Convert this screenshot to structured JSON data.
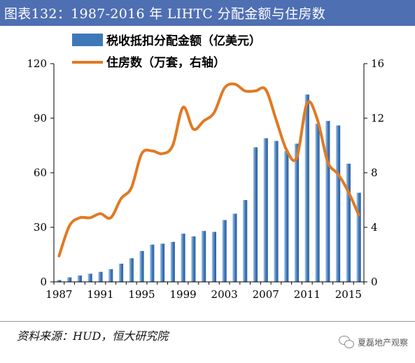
{
  "header": {
    "title": "图表132：1987-2016 年 LIHTC 分配金额与住房数"
  },
  "source": "资料来源：HUD，恒大研究院",
  "watermark": "夏磊地产观察",
  "colors": {
    "bar": "#3f78b8",
    "bar_light": "#a9c8ea",
    "line": "#e07a22",
    "title_bg": "#4f6fb3"
  },
  "chart_data": {
    "type": "bar+line",
    "x_tick_labels": [
      "1987",
      "1991",
      "1995",
      "1999",
      "2003",
      "2007",
      "2011",
      "2015"
    ],
    "y_left": {
      "range": [
        0,
        120
      ],
      "ticks": [
        "0",
        "30",
        "60",
        "90",
        "120"
      ]
    },
    "y_right": {
      "range": [
        0,
        16
      ],
      "ticks": [
        "0",
        "4",
        "8",
        "12",
        "16"
      ]
    },
    "legend": [
      "税收抵扣分配金额（亿美元）",
      "住房数（万套，右轴）"
    ],
    "years": [
      1987,
      1988,
      1989,
      1990,
      1991,
      1992,
      1993,
      1994,
      1995,
      1996,
      1997,
      1998,
      1999,
      2000,
      2001,
      2002,
      2003,
      2004,
      2005,
      2006,
      2007,
      2008,
      2009,
      2010,
      2011,
      2012,
      2013,
      2014,
      2015,
      2016
    ],
    "series": [
      {
        "name": "税收抵扣分配金额（亿美元）",
        "type": "bar",
        "axis": "left",
        "values": [
          1,
          2.5,
          3.5,
          4.5,
          5.5,
          7,
          10,
          13,
          17,
          20.5,
          21,
          22,
          26.5,
          25,
          28,
          27.5,
          34,
          37.5,
          45,
          74,
          79,
          77.5,
          72,
          76,
          103,
          87,
          88.5,
          86,
          65,
          49
        ]
      },
      {
        "name": "住房数（万套，右轴）",
        "type": "line",
        "axis": "right",
        "values": [
          1.9,
          4.1,
          4.7,
          4.7,
          5.0,
          4.7,
          6.1,
          6.9,
          9.4,
          9.6,
          9.4,
          10.0,
          12.8,
          11.2,
          11.8,
          12.4,
          14.2,
          14.5,
          14.0,
          14.0,
          14.1,
          11.9,
          9.7,
          9.1,
          13.1,
          11.9,
          8.8,
          7.9,
          6.6,
          4.9
        ]
      }
    ]
  }
}
